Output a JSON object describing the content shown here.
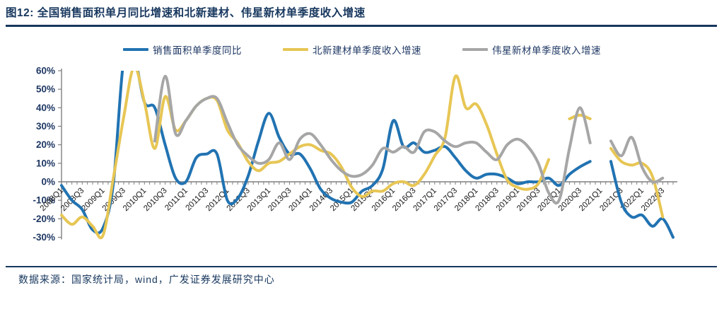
{
  "title": "图12: 全国销售面积单月同比增速和北新建材、伟星新材单季度收入增速",
  "footer": {
    "source_text": "数据来源：国家统计局，wind，广发证券发展研究中心"
  },
  "colors": {
    "title_navy": "#17375E",
    "sales_blue": "#2173B2",
    "bnbm_yellow": "#E7C654",
    "weixing_gray": "#A6A6A6",
    "axis_gray": "#808080",
    "y_label": "#1F3864",
    "x_label": "#1a1a1a"
  },
  "chart_data": {
    "type": "line",
    "title": "图12: 全国销售面积单月同比增速和北新建材、伟星新材单季度收入增速",
    "xlabel": "",
    "ylabel": "",
    "ylim": [
      -30,
      60
    ],
    "yticks": [
      60,
      50,
      40,
      30,
      20,
      10,
      0,
      -10,
      -20,
      -30
    ],
    "ytick_format": "percent",
    "grid": false,
    "legend_position": "top",
    "categories": [
      "2008Q1",
      "2008Q2",
      "2008Q3",
      "2008Q4",
      "2009Q1",
      "2009Q2",
      "2009Q3",
      "2009Q4",
      "2010Q1",
      "2010Q2",
      "2010Q3",
      "2010Q4",
      "2011Q1",
      "2011Q2",
      "2011Q3",
      "2011Q4",
      "2012Q1",
      "2012Q2",
      "2012Q3",
      "2012Q4",
      "2013Q1",
      "2013Q2",
      "2013Q3",
      "2013Q4",
      "2014Q1",
      "2014Q2",
      "2014Q3",
      "2014Q4",
      "2015Q1",
      "2015Q2",
      "2015Q3",
      "2015Q4",
      "2016Q1",
      "2016Q2",
      "2016Q3",
      "2016Q4",
      "2017Q1",
      "2017Q2",
      "2017Q3",
      "2017Q4",
      "2018Q1",
      "2018Q2",
      "2018Q3",
      "2018Q4",
      "2019Q1",
      "2019Q2",
      "2019Q3",
      "2019Q4",
      "2020Q1",
      "2020Q2",
      "2020Q3",
      "2020Q4",
      "2021Q1",
      "2021Q2",
      "2021Q3",
      "2021Q4",
      "2022Q1",
      "2022Q2",
      "2022Q3",
      "2022Q4"
    ],
    "x_tick_labels": [
      "2008Q1",
      "2008Q3",
      "2009Q1",
      "2009Q3",
      "2010Q1",
      "2010Q3",
      "2011Q1",
      "2011Q3",
      "2012Q1",
      "2012Q3",
      "2013Q1",
      "2013Q3",
      "2014Q1",
      "2014Q3",
      "2015Q1",
      "2015Q3",
      "2016Q1",
      "2016Q3",
      "2017Q1",
      "2017Q3",
      "2018Q1",
      "2018Q3",
      "2019Q1",
      "2019Q3",
      "2020Q1",
      "2020Q3",
      "2021Q1",
      "2021Q3",
      "2022Q1",
      "2022Q3"
    ],
    "series": [
      {
        "name": "销售面积单季度同比",
        "color": "#2173B2",
        "values": [
          -2,
          -10,
          -15,
          -26,
          -25,
          -1,
          66,
          68,
          43,
          40,
          20,
          2,
          0,
          13,
          15,
          15,
          -10,
          -9,
          3,
          22,
          37,
          24,
          15,
          15,
          7,
          -4,
          -9,
          -11,
          -11,
          -5,
          -2,
          7,
          33,
          19,
          21,
          16,
          17,
          19,
          13,
          6,
          2,
          4,
          4,
          2,
          -1,
          0,
          0,
          2,
          -2,
          4,
          8,
          11,
          null,
          11,
          -11,
          -19,
          -18,
          -24,
          -20,
          -30
        ]
      },
      {
        "name": "北新建材单季度收入增速",
        "color": "#E7C654",
        "values": [
          -18,
          -23,
          -19,
          -24,
          -29,
          2,
          35,
          62,
          43,
          18,
          46,
          28,
          33,
          41,
          45,
          44,
          28,
          21,
          11,
          6,
          10,
          11,
          15,
          19,
          20,
          17,
          15,
          8,
          -3,
          -8,
          -5,
          -5,
          -1,
          0,
          -2,
          4,
          14,
          24,
          57,
          40,
          42,
          31,
          15,
          1,
          -3,
          -4,
          -1,
          12,
          null,
          34,
          36,
          34,
          null,
          18,
          11,
          9,
          10,
          3,
          -19,
          null
        ]
      },
      {
        "name": "伟星新材单季度收入增速",
        "color": "#A6A6A6",
        "values": [
          null,
          null,
          null,
          null,
          null,
          null,
          null,
          null,
          null,
          22,
          57,
          26,
          33,
          41,
          45,
          45,
          32,
          20,
          14,
          10,
          12,
          21,
          12,
          23,
          26,
          20,
          12,
          6,
          3,
          4,
          9,
          18,
          16,
          19,
          16,
          27,
          27,
          22,
          19,
          21,
          21,
          16,
          12,
          20,
          23,
          19,
          10,
          -6,
          -10,
          18,
          40,
          21,
          null,
          22,
          14,
          24,
          8,
          0,
          2,
          null
        ]
      }
    ]
  }
}
